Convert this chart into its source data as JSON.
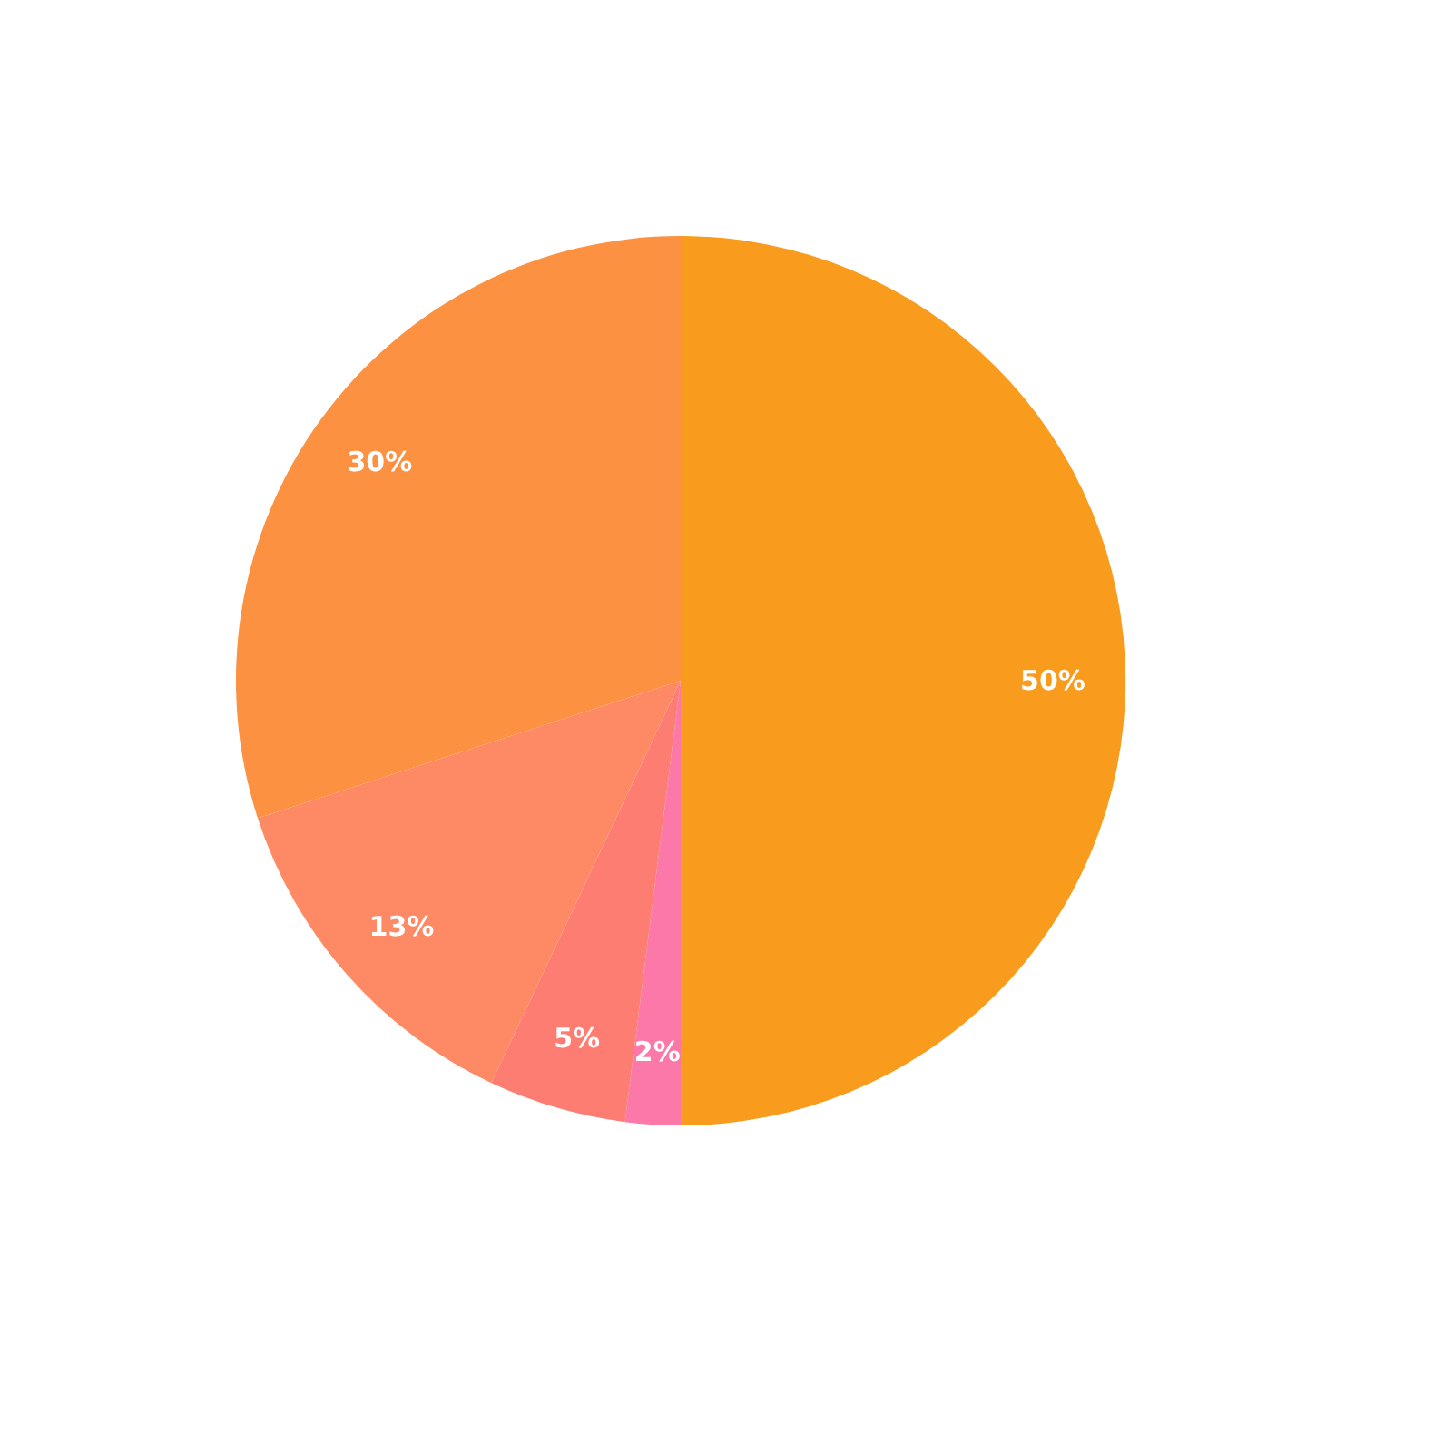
{
  "chart_data": {
    "type": "pie",
    "categories": [
      null,
      null,
      null,
      null,
      null
    ],
    "values": [
      50,
      2,
      5,
      13,
      30
    ],
    "colors": [
      "#f99b1c",
      "#fc78a8",
      "#fd7d73",
      "#fd8a64",
      "#fb9141"
    ],
    "value_labels": [
      "50%",
      "2%",
      "5%",
      "13%",
      "30%"
    ],
    "legend": false
  }
}
